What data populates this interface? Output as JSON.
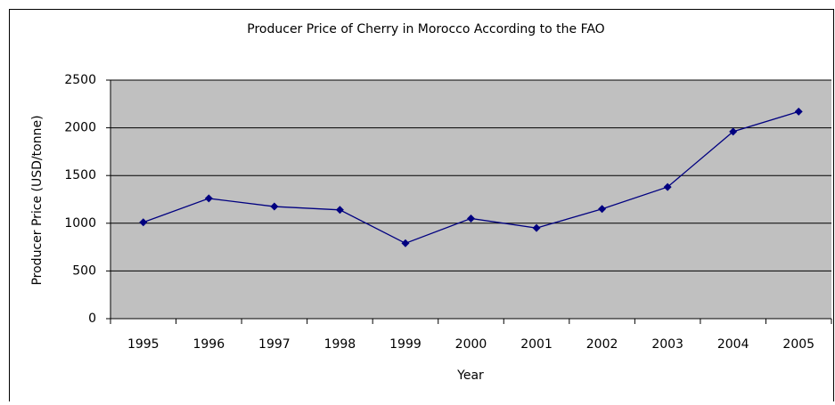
{
  "chart_data": {
    "type": "line",
    "title": "Producer Price of Cherry in Morocco According to the FAO",
    "x_label": "Year",
    "y_label": "Producer Price (USD/tonne)",
    "categories": [
      "1995",
      "1996",
      "1997",
      "1998",
      "1999",
      "2000",
      "2001",
      "2002",
      "2003",
      "2004",
      "2005"
    ],
    "series": [
      {
        "name": "Producer Price",
        "color": "#000080",
        "values": [
          1010,
          1260,
          1175,
          1140,
          790,
          1050,
          950,
          1150,
          1380,
          1960,
          2170
        ]
      }
    ],
    "ylim": [
      0,
      2500
    ],
    "yticks": [
      0,
      500,
      1000,
      1500,
      2000,
      2500
    ],
    "grid": true
  }
}
